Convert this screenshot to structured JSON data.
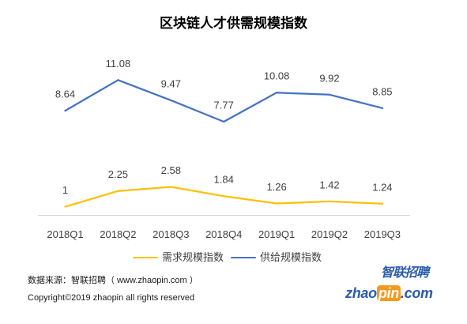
{
  "chart_data": {
    "type": "line",
    "title": "区块链人才供需规模指数",
    "categories": [
      "2018Q1",
      "2018Q2",
      "2018Q3",
      "2018Q4",
      "2019Q1",
      "2019Q2",
      "2019Q3"
    ],
    "series": [
      {
        "name": "需求规模指数",
        "color": "#FFC000",
        "values": [
          1,
          2.25,
          2.58,
          1.84,
          1.26,
          1.42,
          1.24
        ]
      },
      {
        "name": "供给规模指数",
        "color": "#4472C4",
        "values": [
          8.64,
          11.08,
          9.47,
          7.77,
          10.08,
          9.92,
          8.85
        ]
      }
    ],
    "legend": "bottom",
    "grid": false,
    "data_labels": true
  },
  "footer": {
    "source": "数据来源：智联招聘（ www.zhaopin.com ）",
    "copyright": "Copyright©2019 zhaopin all rights reserved"
  },
  "logo": {
    "cn": "智联招聘",
    "en": [
      "zhao",
      "pin",
      ".com"
    ],
    "colors": {
      "blue": "#2A5CAA",
      "orange": "#F39A1E"
    }
  }
}
